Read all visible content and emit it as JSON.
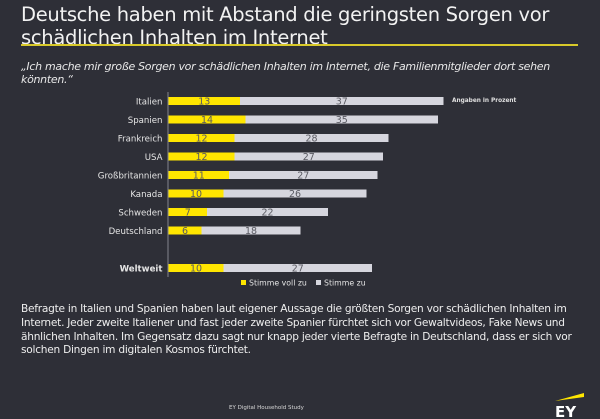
{
  "title": "Deutsche haben mit Abstand die geringsten Sorgen vor schädlichen Inhalten im Internet",
  "quote": "„Ich mache mir große Sorgen vor schädlichen Inhalten im Internet, die Familienmitglieder dort sehen könnten.“",
  "colors": {
    "accent": "#ffe600",
    "secondary": "#d6d6de",
    "background": "#2e2f37",
    "rule": "#d8c92a"
  },
  "chart_data": {
    "type": "bar",
    "orientation": "horizontal",
    "stacked": true,
    "unit_note": "Angaben in Prozent",
    "categories": [
      "Italien",
      "Spanien",
      "Frankreich",
      "USA",
      "Großbritannien",
      "Kanada",
      "Schweden",
      "Deutschland",
      "Weltweit"
    ],
    "series": [
      {
        "name": "Stimme voll zu",
        "color": "#ffe600",
        "values": [
          13,
          14,
          12,
          12,
          11,
          10,
          7,
          6,
          10
        ]
      },
      {
        "name": "Stimme zu",
        "color": "#d6d6de",
        "values": [
          37,
          35,
          28,
          27,
          27,
          26,
          22,
          18,
          27
        ]
      }
    ],
    "legend": "bottom",
    "grid": false
  },
  "body_text": "Befragte in Italien und Spanien haben laut eigener Aussage die größten Sorgen vor schädlichen Inhalten im Internet. Jeder zweite Italiener und fast jeder zweite Spanier fürchtet sich vor Gewaltvideos, Fake News und ähnlichen Inhalten. Im Gegensatz dazu sagt nur knapp jeder vierte Befragte in Deutschland, dass er sich vor solchen Dingen im digitalen Kosmos fürchtet.",
  "footer": "EY Digital Household Study",
  "logo": {
    "text": "EY"
  }
}
